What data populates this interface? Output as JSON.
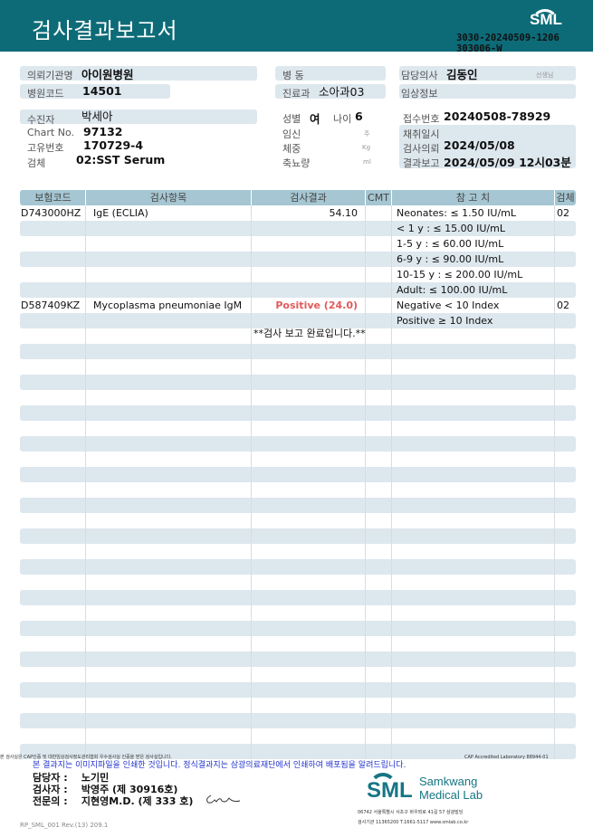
{
  "header": {
    "title": "검사결과보고서",
    "logo": "SML",
    "doc_no_line1": "3030-20240509-1206",
    "doc_no_line2": "303006-W"
  },
  "info": {
    "institution_label": "의뢰기관명",
    "institution": "아이원병원",
    "hospital_code_label": "병원코드",
    "hospital_code": "14501",
    "ward_label": "병  동",
    "ward": "",
    "dept_label": "진료과",
    "dept": "소아과03",
    "doctor_label": "담당의사",
    "doctor": "김동인",
    "doctor_suffix": "선생님",
    "clinical_label": "임상정보",
    "clinical": "",
    "patient_label": "수진자",
    "patient": "박세아",
    "chart_label": "Chart No.",
    "chart": "97132",
    "unique_label": "고유번호",
    "unique": "170729-4",
    "specimen_label": "검체",
    "specimen": "02:SST Serum",
    "sex_label": "성별",
    "sex": "여",
    "age_label": "나이",
    "age": "6",
    "pregnancy_label": "임신",
    "pregnancy_unit": "주",
    "weight_label": "체중",
    "weight_unit": "Kg",
    "urine_label": "축뇨량",
    "urine_unit": "ml",
    "receipt_label": "접수번호",
    "receipt": "20240508-78929",
    "collect_label": "채취일시",
    "collect": "",
    "request_label": "검사의뢰",
    "request": "2024/05/08",
    "report_label": "결과보고",
    "report": "2024/05/09 12시03분"
  },
  "table": {
    "headers": [
      "보험코드",
      "검사항목",
      "검사결과",
      "CMT",
      "참 고 치",
      "검체"
    ],
    "rows": [
      [
        "D743000HZ",
        "IgE (ECLIA)",
        "54.10",
        "",
        "Neonates: ≤ 1.50 IU/mL",
        "02"
      ],
      [
        "",
        "",
        "",
        "",
        "< 1 y : ≤ 15.00 IU/mL",
        ""
      ],
      [
        "",
        "",
        "",
        "",
        "1-5 y : ≤ 60.00 IU/mL",
        ""
      ],
      [
        "",
        "",
        "",
        "",
        "6-9 y : ≤ 90.00 IU/mL",
        ""
      ],
      [
        "",
        "",
        "",
        "",
        "10-15 y : ≤ 200.00 IU/mL",
        ""
      ],
      [
        "",
        "",
        "",
        "",
        "Adult: ≤ 100.00 IU/mL",
        ""
      ],
      [
        "D587409KZ",
        "Mycoplasma pneumoniae IgM",
        "Positive (24.0)",
        "",
        "Negative < 10 Index",
        "02"
      ],
      [
        "",
        "",
        "",
        "",
        "Positive ≥ 10 Index",
        ""
      ]
    ],
    "positive_color": "#e05a5a",
    "completion": "**검사  보고  완료입니다.**"
  },
  "footer": {
    "cap_note": "본 검사실은 CAP인증 및 대한임상검사정도관리협회 우수검사실 인증을 받은 검사실입니다.",
    "cap_no": "CAP Accredited Laboratory 88944-01",
    "notice": "본 결과지는 이미지파일을 인쇄한 것입니다. 정식결과지는 삼광의료재단에서 인쇄하여 배포됨을 알려드립니다.",
    "staff": [
      {
        "role": "담당자 :",
        "name": "노기민"
      },
      {
        "role": "검사자 :",
        "name": "박영주 (제 30916호)"
      },
      {
        "role": "전문의 :",
        "name": "지현영M.D. (제 333 호)"
      }
    ],
    "lab_name1": "Samkwang",
    "lab_name2": "Medical Lab",
    "address": "06742 서울특별시 서초구 바우뫼로 41길 57 삼광빌딩",
    "contact": "검사기관 11365200 T.1661-5117 www.smlab.co.kr",
    "form_no": "RP_SML_001 Rev.(13) 209.1"
  }
}
